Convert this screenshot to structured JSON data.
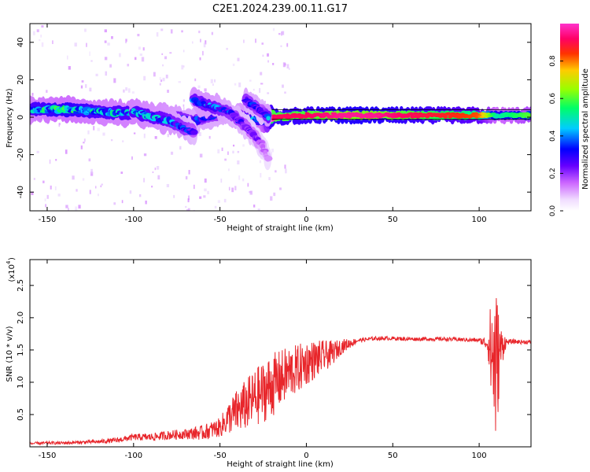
{
  "title": "C2E1.2024.239.00.11.G17",
  "chart_data": [
    {
      "type": "heatmap",
      "xlabel": "Height of straight line (km)",
      "ylabel": "Frequency (Hz)",
      "xlim": [
        -160,
        130
      ],
      "ylim": [
        -50,
        50
      ],
      "xticks": [
        -150,
        -100,
        -50,
        0,
        50,
        100
      ],
      "yticks": [
        -40,
        -20,
        0,
        20,
        40
      ],
      "colorbar": {
        "label": "Normalized spectral amplitude",
        "range": [
          0,
          1
        ],
        "ticks": [
          "0.0",
          "0.2",
          "0.4",
          "0.6",
          "0.8"
        ],
        "colormap": [
          "#ffffff",
          "#e6ccff",
          "#cc66ff",
          "#6600ff",
          "#0000ff",
          "#00ccff",
          "#00ff66",
          "#99ff00",
          "#ffcc00",
          "#ff3300",
          "#ff0066",
          "#ff33cc"
        ]
      },
      "ridges": [
        {
          "name": "main",
          "x": [
            -160,
            -140,
            -120,
            -100,
            -80,
            -65,
            -50,
            -35,
            -25,
            -20,
            0,
            20,
            40,
            60,
            80,
            100,
            110,
            130
          ],
          "y": [
            4,
            4,
            3,
            2,
            0,
            -2,
            2,
            0,
            -1,
            0,
            1,
            1,
            1,
            1,
            1,
            1,
            1,
            1
          ],
          "amp": [
            0.45,
            0.5,
            0.45,
            0.45,
            0.4,
            0.35,
            0.35,
            0.4,
            0.5,
            0.9,
            0.9,
            0.95,
            0.95,
            0.9,
            0.85,
            0.8,
            0.5,
            0.6
          ]
        },
        {
          "name": "lower",
          "x": [
            -100,
            -80,
            -70,
            -65
          ],
          "y": [
            3,
            -2,
            -6,
            -8
          ],
          "amp": [
            0.45,
            0.4,
            0.35,
            0.3
          ]
        },
        {
          "name": "branch",
          "x": [
            -65,
            -55,
            -45,
            -35,
            -30,
            -26,
            -22
          ],
          "y": [
            9,
            6,
            3,
            -5,
            -10,
            -15,
            -22
          ],
          "amp": [
            0.4,
            0.4,
            0.35,
            0.3,
            0.25,
            0.2,
            0.15
          ]
        },
        {
          "name": "upper",
          "x": [
            -35,
            -30,
            -26,
            -22
          ],
          "y": [
            9,
            6,
            3,
            0
          ],
          "amp": [
            0.35,
            0.35,
            0.3,
            0.4
          ]
        }
      ]
    },
    {
      "type": "line",
      "xlabel": "Height of straight line (km)",
      "ylabel": "SNR (10 * v/v)",
      "yscale_label": "(x10",
      "yscale_exponent": "4",
      "xlim": [
        -160,
        130
      ],
      "ylim": [
        0,
        2.9
      ],
      "xticks": [
        -150,
        -100,
        -50,
        0,
        50,
        100
      ],
      "yticks": [
        0.5,
        1.0,
        1.5,
        2.0,
        2.5
      ],
      "color": "#e8262b",
      "series": [
        {
          "x": [
            -160,
            -150,
            -140,
            -130,
            -120,
            -110,
            -100,
            -90,
            -80,
            -70,
            -60,
            -50,
            -45,
            -40,
            -35,
            -30,
            -25,
            -20,
            -15,
            -10,
            -5,
            0,
            5,
            10,
            15,
            20,
            25,
            30,
            40,
            50,
            60,
            70,
            80,
            90,
            100,
            105,
            108,
            110,
            112,
            115,
            120,
            130
          ],
          "values": [
            0.05,
            0.06,
            0.06,
            0.07,
            0.08,
            0.1,
            0.15,
            0.15,
            0.18,
            0.2,
            0.22,
            0.3,
            0.45,
            0.55,
            0.65,
            0.75,
            0.85,
            0.95,
            1.05,
            1.15,
            1.2,
            1.3,
            1.35,
            1.4,
            1.45,
            1.55,
            1.6,
            1.65,
            1.68,
            1.68,
            1.67,
            1.67,
            1.67,
            1.66,
            1.65,
            1.6,
            1.4,
            1.2,
            1.5,
            1.62,
            1.63,
            1.62
          ]
        }
      ],
      "noise_amplitude": {
        "x": [
          -160,
          -120,
          -100,
          -70,
          -50,
          -40,
          -30,
          -20,
          -15,
          0,
          10,
          20,
          30,
          100,
          105,
          108,
          110,
          112,
          116,
          130
        ],
        "values": [
          0.02,
          0.03,
          0.05,
          0.08,
          0.15,
          0.35,
          0.45,
          0.5,
          0.45,
          0.35,
          0.25,
          0.12,
          0.03,
          0.03,
          0.12,
          1.3,
          1.3,
          0.4,
          0.04,
          0.03
        ]
      }
    }
  ]
}
